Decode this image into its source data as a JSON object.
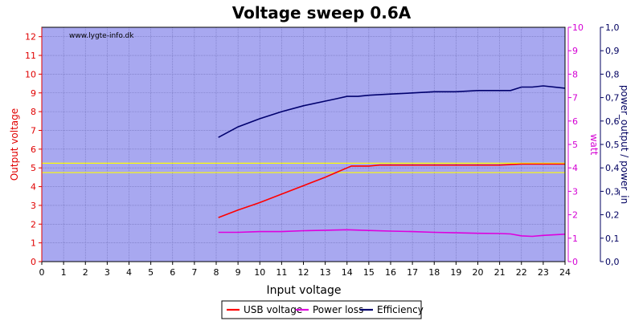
{
  "chart_data": {
    "type": "line",
    "title": "Voltage sweep 0.6A",
    "watermark": "www.lygte-info.dk",
    "xlabel": "Input voltage",
    "xlim": [
      0,
      24
    ],
    "x_ticks": [
      "0",
      "1",
      "2",
      "3",
      "4",
      "5",
      "6",
      "7",
      "8",
      "9",
      "10",
      "11",
      "12",
      "13",
      "14",
      "15",
      "16",
      "17",
      "18",
      "19",
      "20",
      "21",
      "22",
      "23",
      "24"
    ],
    "axes": {
      "left": {
        "label": "Output voltage",
        "color": "#e00000",
        "ylim": [
          0,
          12.5
        ],
        "ticks": [
          "0",
          "1",
          "2",
          "3",
          "4",
          "5",
          "6",
          "7",
          "8",
          "9",
          "10",
          "11",
          "12"
        ]
      },
      "right1": {
        "label": "watt",
        "color": "#d400d4",
        "ylim": [
          0,
          10
        ],
        "ticks": [
          "0",
          "1",
          "2",
          "3",
          "4",
          "5",
          "6",
          "7",
          "8",
          "9",
          "10"
        ]
      },
      "right2": {
        "label": "power_output / power_in",
        "color": "#000060",
        "ylim": [
          0,
          1
        ],
        "ticks": [
          "0,0",
          "0,1",
          "0,2",
          "0,3",
          "0,4",
          "0,5",
          "0,6",
          "0,7",
          "0,8",
          "0,9",
          "1,0"
        ]
      }
    },
    "reference_lines": {
      "axis": "left",
      "values": [
        4.75,
        5.25
      ],
      "color": "#ffff00"
    },
    "plot_background": "#a8a8f0",
    "grid": true,
    "legend_position": "bottom-center",
    "series": [
      {
        "name": "USB voltage",
        "axis": "left",
        "color": "#ff0000",
        "x": [
          8.1,
          9,
          10,
          11,
          12,
          13,
          13.5,
          14,
          14.2,
          15,
          15.5,
          16,
          17,
          18,
          19,
          20,
          21,
          22,
          23,
          24
        ],
        "y": [
          2.35,
          2.75,
          3.15,
          3.6,
          4.05,
          4.5,
          4.75,
          5.0,
          5.1,
          5.1,
          5.15,
          5.15,
          5.15,
          5.15,
          5.15,
          5.15,
          5.15,
          5.2,
          5.2,
          5.2
        ]
      },
      {
        "name": "Power loss",
        "axis": "right1",
        "color": "#dd00dd",
        "x": [
          8.1,
          9,
          10,
          11,
          12,
          13,
          14,
          15,
          16,
          17,
          18,
          19,
          20,
          21,
          21.5,
          22,
          22.5,
          23,
          24
        ],
        "y": [
          1.25,
          1.25,
          1.28,
          1.28,
          1.32,
          1.34,
          1.36,
          1.33,
          1.3,
          1.28,
          1.25,
          1.23,
          1.21,
          1.2,
          1.18,
          1.1,
          1.08,
          1.12,
          1.17
        ]
      },
      {
        "name": "Efficiency",
        "axis": "right2",
        "color": "#00006e",
        "x": [
          8.1,
          9,
          10,
          11,
          12,
          13,
          13.5,
          14,
          14.5,
          15,
          16,
          17,
          18,
          19,
          20,
          21,
          21.5,
          22,
          22.5,
          23,
          24
        ],
        "y": [
          0.53,
          0.575,
          0.61,
          0.64,
          0.665,
          0.685,
          0.695,
          0.705,
          0.705,
          0.71,
          0.715,
          0.72,
          0.725,
          0.725,
          0.73,
          0.73,
          0.73,
          0.745,
          0.745,
          0.75,
          0.74
        ]
      }
    ]
  }
}
